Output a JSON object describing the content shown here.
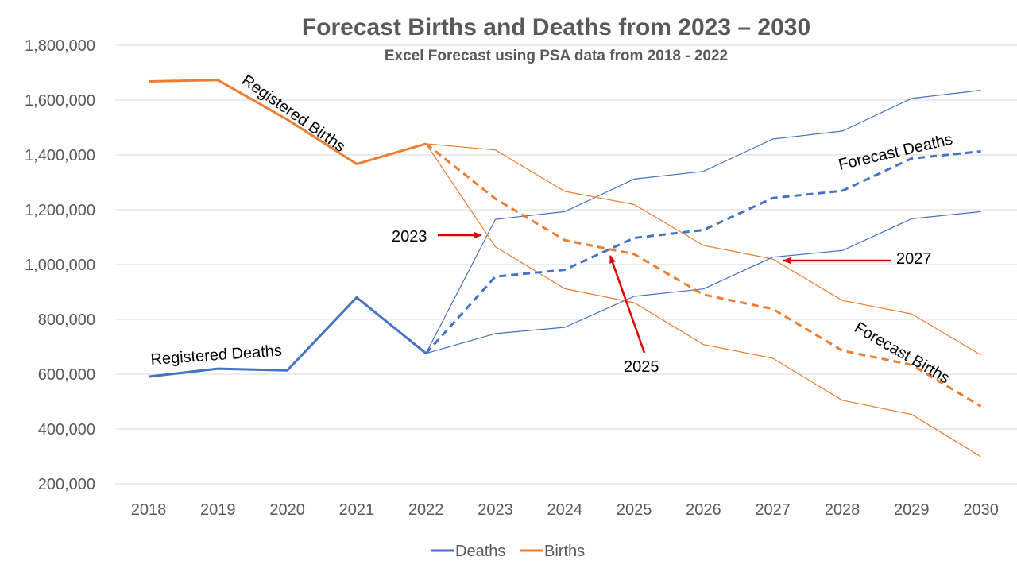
{
  "colors": {
    "deaths": "#4472C4",
    "births": "#ED7D31",
    "grid": "#D9D9D9",
    "arrow": "#E00000",
    "text": "#595959"
  },
  "chart_data": {
    "type": "line",
    "title": "Forecast Births and Deaths from 2023 – 2030",
    "subtitle": "Excel Forecast using PSA data from 2018 - 2022",
    "x": [
      2018,
      2019,
      2020,
      2021,
      2022,
      2023,
      2024,
      2025,
      2026,
      2027,
      2028,
      2029,
      2030
    ],
    "x_tick_labels": [
      "2018",
      "2019",
      "2020",
      "2021",
      "2022",
      "2023",
      "2024",
      "2025",
      "2026",
      "2027",
      "2028",
      "2029",
      "2030"
    ],
    "ylim": [
      200000,
      1800000
    ],
    "y_ticks": [
      200000,
      400000,
      600000,
      800000,
      1000000,
      1200000,
      1400000,
      1600000,
      1800000
    ],
    "y_tick_labels": [
      "200,000",
      "400,000",
      "600,000",
      "800,000",
      "1,000,000",
      "1,200,000",
      "1,400,000",
      "1,600,000",
      "1,800,000"
    ],
    "grid": "horizontal",
    "legend": {
      "position": "bottom",
      "entries": [
        "Deaths",
        "Births"
      ]
    },
    "series": [
      {
        "name": "Deaths",
        "role": "actual",
        "x": [
          2018,
          2019,
          2020,
          2021,
          2022
        ],
        "values": [
          591000,
          620000,
          614000,
          880000,
          676000
        ]
      },
      {
        "name": "Deaths",
        "role": "forecast",
        "x": [
          2022,
          2023,
          2024,
          2025,
          2026,
          2027,
          2028,
          2029,
          2030
        ],
        "values": [
          676000,
          956000,
          981000,
          1097000,
          1126000,
          1243000,
          1269000,
          1387000,
          1413000
        ]
      },
      {
        "name": "Deaths",
        "role": "upper bound",
        "x": [
          2022,
          2023,
          2024,
          2025,
          2026,
          2027,
          2028,
          2029,
          2030
        ],
        "values": [
          676000,
          1165000,
          1193000,
          1312000,
          1340000,
          1458000,
          1487000,
          1606000,
          1636000
        ]
      },
      {
        "name": "Deaths",
        "role": "lower bound",
        "x": [
          2022,
          2023,
          2024,
          2025,
          2026,
          2027,
          2028,
          2029,
          2030
        ],
        "values": [
          676000,
          748000,
          771000,
          884000,
          911000,
          1027000,
          1051000,
          1167000,
          1193000
        ]
      },
      {
        "name": "Births",
        "role": "actual",
        "x": [
          2018,
          2019,
          2020,
          2021,
          2022
        ],
        "values": [
          1668000,
          1673000,
          1529000,
          1367000,
          1441000
        ]
      },
      {
        "name": "Births",
        "role": "forecast",
        "x": [
          2022,
          2023,
          2024,
          2025,
          2026,
          2027,
          2028,
          2029,
          2030
        ],
        "values": [
          1441000,
          1240000,
          1089000,
          1038000,
          890000,
          838000,
          686000,
          634000,
          483000
        ]
      },
      {
        "name": "Births",
        "role": "upper bound",
        "x": [
          2022,
          2023,
          2024,
          2025,
          2026,
          2027,
          2028,
          2029,
          2030
        ],
        "values": [
          1441000,
          1418000,
          1267000,
          1219000,
          1070000,
          1020000,
          869000,
          820000,
          670000
        ]
      },
      {
        "name": "Births",
        "role": "lower bound",
        "x": [
          2022,
          2023,
          2024,
          2025,
          2026,
          2027,
          2028,
          2029,
          2030
        ],
        "values": [
          1441000,
          1065000,
          912000,
          861000,
          708000,
          658000,
          505000,
          453000,
          299000
        ]
      }
    ],
    "annotations": [
      {
        "text": "Registered Births"
      },
      {
        "text": "Registered Deaths"
      },
      {
        "text": "Forecast Deaths"
      },
      {
        "text": "Forecast Births"
      },
      {
        "text": "2023"
      },
      {
        "text": "2025"
      },
      {
        "text": "2027"
      }
    ]
  }
}
